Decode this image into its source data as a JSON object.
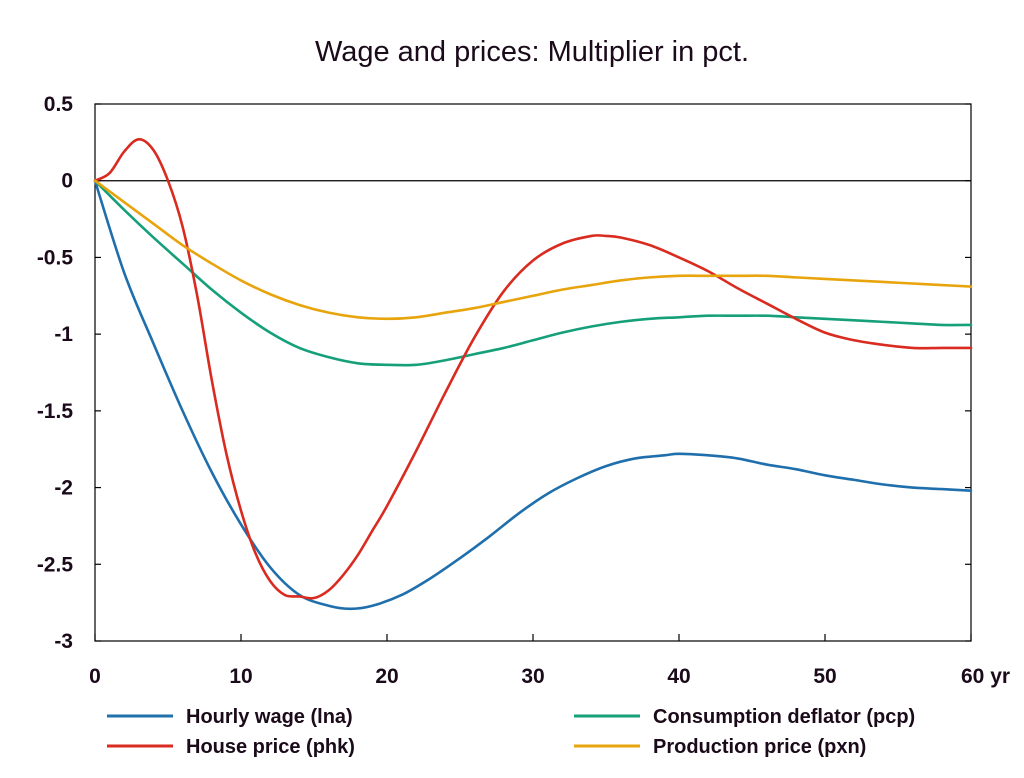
{
  "chart_data": {
    "type": "line",
    "title": "Wage and prices: Multiplier in pct.",
    "xlabel": "",
    "ylabel": "",
    "xlim": [
      0,
      60
    ],
    "ylim": [
      -3,
      0.5
    ],
    "x_ticks": [
      0,
      10,
      20,
      30,
      40,
      50,
      60
    ],
    "x_tick_labels": [
      "0",
      "10",
      "20",
      "30",
      "40",
      "50",
      "60 yr"
    ],
    "y_ticks": [
      0.5,
      0,
      -0.5,
      -1,
      -1.5,
      -2,
      -2.5,
      -3
    ],
    "y_tick_labels": [
      "0.5",
      "0",
      "-0.5",
      "-1",
      "-1.5",
      "-2",
      "-2.5",
      "-3"
    ],
    "zero_line": true,
    "grid": false,
    "legend_position": "bottom",
    "series": [
      {
        "name": "Hourly wage (lna)",
        "color": "#1f6fad",
        "x": [
          0,
          2,
          4,
          6,
          8,
          10,
          12,
          14,
          16,
          17.5,
          19,
          21,
          23,
          25,
          27,
          29,
          31,
          33,
          35,
          37,
          39,
          40,
          42,
          44,
          46,
          48,
          50,
          52,
          54,
          56,
          58,
          60
        ],
        "y": [
          0,
          -0.6,
          -1.06,
          -1.5,
          -1.9,
          -2.24,
          -2.52,
          -2.7,
          -2.77,
          -2.79,
          -2.77,
          -2.7,
          -2.59,
          -2.46,
          -2.32,
          -2.17,
          -2.04,
          -1.94,
          -1.86,
          -1.81,
          -1.79,
          -1.78,
          -1.79,
          -1.81,
          -1.85,
          -1.88,
          -1.92,
          -1.95,
          -1.98,
          -2.0,
          -2.01,
          -2.02
        ]
      },
      {
        "name": "Consumption deflator (pcp)",
        "color": "#15a07a",
        "x": [
          0,
          2,
          4,
          6,
          8,
          10,
          12,
          14,
          16,
          18,
          20,
          22,
          24,
          26,
          28,
          30,
          32,
          34,
          36,
          38,
          40,
          42,
          44,
          46,
          48,
          50,
          52,
          54,
          56,
          58,
          60
        ],
        "y": [
          0,
          -0.19,
          -0.37,
          -0.54,
          -0.71,
          -0.86,
          -0.99,
          -1.09,
          -1.15,
          -1.19,
          -1.2,
          -1.2,
          -1.17,
          -1.13,
          -1.09,
          -1.04,
          -0.99,
          -0.95,
          -0.92,
          -0.9,
          -0.89,
          -0.88,
          -0.88,
          -0.88,
          -0.89,
          -0.9,
          -0.91,
          -0.92,
          -0.93,
          -0.94,
          -0.94
        ]
      },
      {
        "name": "House price (phk)",
        "color": "#d92b1f",
        "x": [
          0,
          1,
          2,
          3,
          4,
          5,
          6,
          7,
          8,
          9,
          10,
          11,
          12,
          13,
          14,
          15,
          16,
          17,
          18,
          19,
          20,
          22,
          24,
          26,
          28,
          30,
          32,
          34,
          35,
          36,
          38,
          40,
          42,
          44,
          46,
          48,
          50,
          52,
          54,
          56,
          58,
          60
        ],
        "y": [
          0,
          0.05,
          0.19,
          0.27,
          0.2,
          0.0,
          -0.3,
          -0.75,
          -1.3,
          -1.78,
          -2.15,
          -2.43,
          -2.61,
          -2.7,
          -2.71,
          -2.72,
          -2.67,
          -2.57,
          -2.44,
          -2.28,
          -2.12,
          -1.76,
          -1.38,
          -1.02,
          -0.72,
          -0.52,
          -0.41,
          -0.36,
          -0.36,
          -0.37,
          -0.42,
          -0.5,
          -0.59,
          -0.7,
          -0.8,
          -0.9,
          -0.99,
          -1.04,
          -1.07,
          -1.09,
          -1.09,
          -1.09
        ]
      },
      {
        "name": "Production price (pxn)",
        "color": "#e8a40c",
        "x": [
          0,
          2,
          4,
          6,
          8,
          10,
          12,
          14,
          16,
          18,
          20,
          22,
          24,
          26,
          28,
          30,
          32,
          34,
          36,
          38,
          40,
          42,
          44,
          46,
          48,
          50,
          52,
          54,
          56,
          58,
          60
        ],
        "y": [
          0,
          -0.14,
          -0.28,
          -0.42,
          -0.54,
          -0.65,
          -0.74,
          -0.81,
          -0.86,
          -0.89,
          -0.9,
          -0.89,
          -0.86,
          -0.83,
          -0.79,
          -0.75,
          -0.71,
          -0.68,
          -0.65,
          -0.63,
          -0.62,
          -0.62,
          -0.62,
          -0.62,
          -0.63,
          -0.64,
          -0.65,
          -0.66,
          -0.67,
          -0.68,
          -0.69
        ]
      }
    ],
    "legend_order": [
      0,
      1,
      2,
      3
    ]
  }
}
